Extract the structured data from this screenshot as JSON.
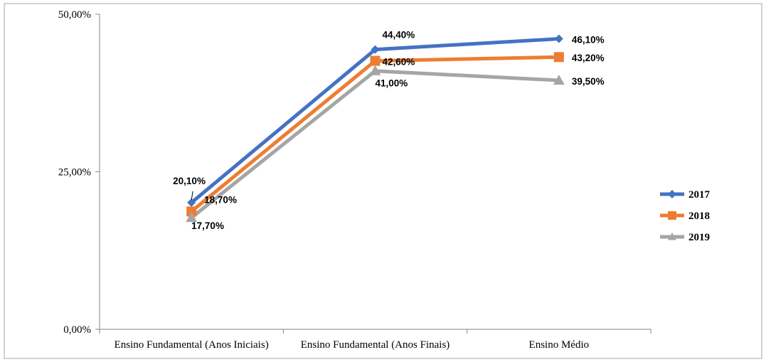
{
  "chart_data": {
    "type": "line",
    "title": "",
    "xlabel": "",
    "ylabel": "",
    "categories": [
      "Ensino Fundamental (Anos Iniciais)",
      "Ensino Fundamental (Anos Finais)",
      "Ensino Médio"
    ],
    "ylim": [
      0,
      50
    ],
    "yticks": [
      0,
      25,
      50
    ],
    "ytick_labels": [
      "0,00%",
      "25,00%",
      "50,00%"
    ],
    "grid": false,
    "legend_position": "right",
    "series": [
      {
        "name": "2017",
        "values": [
          20.1,
          44.4,
          46.1
        ],
        "labels": [
          "20,10%",
          "44,40%",
          "46,10%"
        ],
        "color": "#4472C4",
        "marker": "diamond"
      },
      {
        "name": "2018",
        "values": [
          18.7,
          42.6,
          43.2
        ],
        "labels": [
          "18,70%",
          "42,60%",
          "43,20%"
        ],
        "color": "#ED7D31",
        "marker": "square"
      },
      {
        "name": "2019",
        "values": [
          17.7,
          41.0,
          39.5
        ],
        "labels": [
          "17,70%",
          "41,00%",
          "39,50%"
        ],
        "color": "#A5A5A5",
        "marker": "triangle"
      }
    ]
  }
}
